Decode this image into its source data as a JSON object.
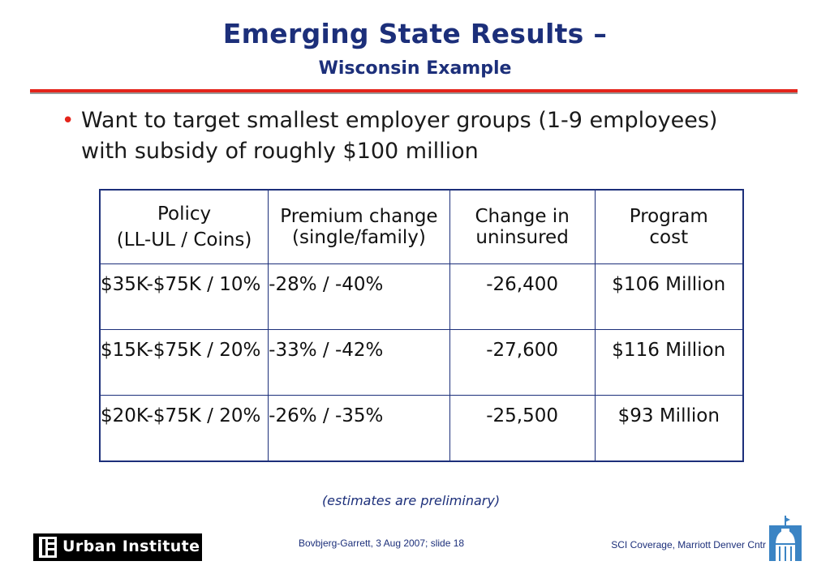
{
  "slide": {
    "title": "Emerging State Results –",
    "subtitle": "Wisconsin Example",
    "bullet": "Want to target smallest employer groups (1-9 employees) with subsidy of roughly $100 million"
  },
  "table": {
    "headers": {
      "policy_line1": "Policy",
      "policy_line2": "(LL-UL / Coins)",
      "premium": "Premium change (single/family)",
      "uninsured": "Change in uninsured",
      "cost": "Program cost"
    },
    "rows": [
      {
        "policy": "$35K-$75K / 10%",
        "premium": "-28% / -40%",
        "uninsured": "-26,400",
        "cost": "$106 Million"
      },
      {
        "policy": "$15K-$75K / 20%",
        "premium": "-33% / -42%",
        "uninsured": "-27,600",
        "cost": "$116 Million"
      },
      {
        "policy": "$20K-$75K / 20%",
        "premium": "-26% / -35%",
        "uninsured": "-25,500",
        "cost": "$93 Million"
      }
    ]
  },
  "note": "(estimates are preliminary)",
  "footer": {
    "logo_text": "Urban Institute",
    "center": "Bovbjerg-Garrett, 3 Aug 2007; slide 18",
    "right": "SCI Coverage, Marriott Denver Cntr"
  },
  "colors": {
    "title": "#1c2f7a",
    "accent_rule": "#e4241b",
    "bullet": "#e4241b",
    "table_border": "#1c2f7a"
  },
  "icons": [
    "urban-institute-logo-mark",
    "capitol-dome-icon"
  ]
}
